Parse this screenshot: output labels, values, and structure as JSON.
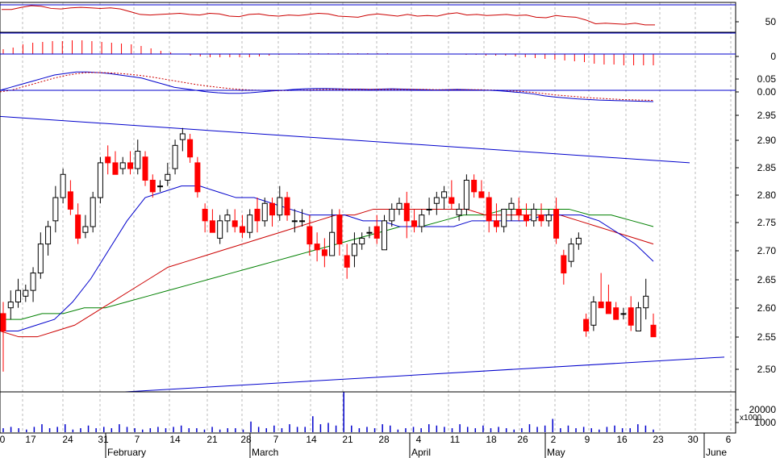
{
  "chart_data": {
    "type": "candlestick",
    "colors": {
      "up": "#ffffff",
      "down": "#ff0000",
      "ma_short": "#0000cc",
      "ma_mid": "#cc0000",
      "ma_long": "#008000",
      "trend": "#0000cc",
      "grid": "#bbbbbb",
      "frame": "#000000",
      "rsi": "#cc0000",
      "macd": "#0000cc",
      "macd_signal": "#cc0000",
      "hist": "#ff0000",
      "volume": "#0000cc"
    },
    "panels": {
      "rsi": {
        "tick_labels": [
          "50"
        ],
        "values": [
          70,
          70,
          74,
          77,
          76,
          72,
          71,
          73,
          74,
          73,
          72,
          73,
          71,
          66,
          61,
          60,
          61,
          62,
          63,
          61,
          60,
          63,
          62,
          58,
          57,
          61,
          62,
          59,
          58,
          60,
          59,
          61,
          63,
          62,
          58,
          57,
          56,
          60,
          62,
          60,
          58,
          61,
          58,
          59,
          58,
          62,
          64,
          60,
          61,
          59,
          60,
          61,
          59,
          60,
          56,
          55,
          59,
          57,
          56,
          51,
          44,
          45,
          44,
          43,
          45,
          42,
          42
        ]
      },
      "histogram": {
        "tick_labels": [
          "0"
        ],
        "values": [
          0.006,
          0.008,
          0.012,
          0.014,
          0.015,
          0.016,
          0.016,
          0.017,
          0.017,
          0.016,
          0.015,
          0.014,
          0.013,
          0.012,
          0.01,
          0.007,
          0.004,
          0.002,
          0.0,
          -0.002,
          -0.003,
          -0.004,
          -0.004,
          -0.004,
          -0.004,
          -0.004,
          -0.003,
          -0.002,
          -0.001,
          0.0,
          0.001,
          0.001,
          0.001,
          0.001,
          0.001,
          0.001,
          0.001,
          0.001,
          0.001,
          0.001,
          0.0,
          0.0,
          0.0,
          0.0,
          0.0,
          0.0,
          0.0,
          -0.001,
          -0.001,
          -0.002,
          -0.002,
          -0.002,
          -0.003,
          -0.004,
          -0.005,
          -0.006,
          -0.007,
          -0.008,
          -0.009,
          -0.01,
          -0.012,
          -0.013,
          -0.013,
          -0.014,
          -0.014,
          -0.014,
          -0.014
        ]
      },
      "macd": {
        "tick_labels": [
          "0.05",
          "0.00"
        ],
        "macd": [
          0,
          0.01,
          0.02,
          0.03,
          0.04,
          0.05,
          0.055,
          0.06,
          0.06,
          0.058,
          0.055,
          0.05,
          0.045,
          0.04,
          0.03,
          0.02,
          0.01,
          0.005,
          0.0,
          -0.005,
          -0.008,
          -0.01,
          -0.01,
          -0.008,
          -0.005,
          -0.002,
          0.0,
          0.003,
          0.005,
          0.006,
          0.006,
          0.005,
          0.004,
          0.004,
          0.003,
          0.004,
          0.005,
          0.004,
          0.003,
          0.002,
          0.001,
          0.002,
          0.003,
          0.002,
          0.001,
          0.0,
          -0.002,
          -0.005,
          -0.008,
          -0.012,
          -0.018,
          -0.022,
          -0.025,
          -0.028,
          -0.03,
          -0.032,
          -0.033,
          -0.034,
          -0.035,
          -0.036,
          -0.037
        ],
        "signal": [
          -0.005,
          0.0,
          0.01,
          0.02,
          0.03,
          0.04,
          0.048,
          0.054,
          0.058,
          0.058,
          0.057,
          0.055,
          0.052,
          0.048,
          0.043,
          0.037,
          0.031,
          0.025,
          0.019,
          0.014,
          0.01,
          0.006,
          0.003,
          0.001,
          0.0,
          -0.001,
          -0.001,
          0.0,
          0.001,
          0.002,
          0.003,
          0.003,
          0.003,
          0.003,
          0.003,
          0.003,
          0.003,
          0.003,
          0.003,
          0.003,
          0.002,
          0.002,
          0.002,
          0.002,
          0.002,
          0.001,
          0.0,
          -0.002,
          -0.004,
          -0.007,
          -0.011,
          -0.015,
          -0.018,
          -0.021,
          -0.024,
          -0.026,
          -0.028,
          -0.03,
          -0.031,
          -0.032,
          -0.033
        ]
      },
      "price": {
        "tick_labels": [
          "2.95",
          "2.90",
          "2.85",
          "2.80",
          "2.75",
          "2.70",
          "2.65",
          "2.60",
          "2.55",
          "2.50"
        ],
        "ylim": [
          2.465,
          2.985
        ],
        "candles": [
          [
            2.6,
            2.62,
            2.5,
            2.57
          ],
          [
            2.61,
            2.64,
            2.59,
            2.62
          ],
          [
            2.62,
            2.66,
            2.61,
            2.64
          ],
          [
            2.63,
            2.65,
            2.62,
            2.64
          ],
          [
            2.64,
            2.68,
            2.62,
            2.67
          ],
          [
            2.67,
            2.74,
            2.66,
            2.72
          ],
          [
            2.72,
            2.76,
            2.7,
            2.75
          ],
          [
            2.76,
            2.82,
            2.74,
            2.8
          ],
          [
            2.8,
            2.85,
            2.79,
            2.84
          ],
          [
            2.81,
            2.83,
            2.77,
            2.78
          ],
          [
            2.77,
            2.79,
            2.72,
            2.73
          ],
          [
            2.74,
            2.77,
            2.73,
            2.75
          ],
          [
            2.75,
            2.81,
            2.74,
            2.8
          ],
          [
            2.8,
            2.87,
            2.79,
            2.86
          ],
          [
            2.87,
            2.89,
            2.84,
            2.86
          ],
          [
            2.86,
            2.88,
            2.84,
            2.84
          ],
          [
            2.85,
            2.87,
            2.84,
            2.86
          ],
          [
            2.86,
            2.88,
            2.84,
            2.85
          ],
          [
            2.85,
            2.9,
            2.84,
            2.88
          ],
          [
            2.87,
            2.88,
            2.82,
            2.83
          ],
          [
            2.83,
            2.84,
            2.8,
            2.81
          ],
          [
            2.82,
            2.83,
            2.81,
            2.82
          ],
          [
            2.83,
            2.86,
            2.82,
            2.84
          ],
          [
            2.85,
            2.9,
            2.84,
            2.89
          ],
          [
            2.9,
            2.92,
            2.88,
            2.91
          ],
          [
            2.9,
            2.91,
            2.86,
            2.87
          ],
          [
            2.86,
            2.87,
            2.8,
            2.81
          ],
          [
            2.78,
            2.79,
            2.74,
            2.76
          ],
          [
            2.76,
            2.78,
            2.74,
            2.74
          ],
          [
            2.73,
            2.77,
            2.72,
            2.76
          ],
          [
            2.76,
            2.78,
            2.74,
            2.77
          ],
          [
            2.76,
            2.78,
            2.74,
            2.75
          ],
          [
            2.75,
            2.77,
            2.73,
            2.74
          ],
          [
            2.74,
            2.78,
            2.73,
            2.77
          ],
          [
            2.78,
            2.8,
            2.74,
            2.76
          ],
          [
            2.76,
            2.8,
            2.75,
            2.79
          ],
          [
            2.79,
            2.8,
            2.75,
            2.77
          ],
          [
            2.77,
            2.82,
            2.76,
            2.8
          ],
          [
            2.8,
            2.81,
            2.76,
            2.77
          ],
          [
            2.76,
            2.78,
            2.74,
            2.76
          ],
          [
            2.76,
            2.78,
            2.75,
            2.76
          ],
          [
            2.75,
            2.77,
            2.7,
            2.72
          ],
          [
            2.72,
            2.74,
            2.69,
            2.71
          ],
          [
            2.71,
            2.73,
            2.68,
            2.7
          ],
          [
            2.7,
            2.78,
            2.7,
            2.74
          ],
          [
            2.77,
            2.78,
            2.7,
            2.72
          ],
          [
            2.7,
            2.72,
            2.66,
            2.68
          ],
          [
            2.7,
            2.74,
            2.68,
            2.72
          ],
          [
            2.72,
            2.74,
            2.71,
            2.73
          ],
          [
            2.74,
            2.75,
            2.73,
            2.74
          ],
          [
            2.75,
            2.77,
            2.72,
            2.73
          ],
          [
            2.71,
            2.77,
            2.71,
            2.76
          ],
          [
            2.76,
            2.79,
            2.75,
            2.78
          ],
          [
            2.78,
            2.8,
            2.77,
            2.79
          ],
          [
            2.79,
            2.81,
            2.73,
            2.76
          ],
          [
            2.76,
            2.78,
            2.74,
            2.75
          ],
          [
            2.75,
            2.78,
            2.74,
            2.77
          ],
          [
            2.78,
            2.8,
            2.77,
            2.78
          ],
          [
            2.79,
            2.81,
            2.77,
            2.8
          ],
          [
            2.8,
            2.82,
            2.78,
            2.81
          ],
          [
            2.8,
            2.83,
            2.78,
            2.79
          ],
          [
            2.77,
            2.79,
            2.76,
            2.78
          ],
          [
            2.78,
            2.84,
            2.77,
            2.83
          ],
          [
            2.83,
            2.84,
            2.8,
            2.81
          ],
          [
            2.81,
            2.83,
            2.8,
            2.8
          ],
          [
            2.8,
            2.81,
            2.74,
            2.76
          ],
          [
            2.76,
            2.79,
            2.74,
            2.75
          ],
          [
            2.75,
            2.78,
            2.74,
            2.78
          ],
          [
            2.78,
            2.8,
            2.76,
            2.79
          ],
          [
            2.78,
            2.8,
            2.76,
            2.77
          ],
          [
            2.77,
            2.79,
            2.75,
            2.76
          ],
          [
            2.76,
            2.79,
            2.75,
            2.78
          ],
          [
            2.77,
            2.79,
            2.75,
            2.76
          ],
          [
            2.76,
            2.78,
            2.75,
            2.77
          ],
          [
            2.78,
            2.8,
            2.72,
            2.73
          ],
          [
            2.7,
            2.71,
            2.65,
            2.67
          ],
          [
            2.69,
            2.73,
            2.68,
            2.72
          ],
          [
            2.72,
            2.74,
            2.71,
            2.73
          ],
          [
            2.59,
            2.6,
            2.56,
            2.57
          ],
          [
            2.58,
            2.63,
            2.57,
            2.62
          ],
          [
            2.62,
            2.67,
            2.61,
            2.61
          ],
          [
            2.62,
            2.65,
            2.6,
            2.6
          ],
          [
            2.61,
            2.62,
            2.59,
            2.59
          ],
          [
            2.6,
            2.61,
            2.59,
            2.6
          ],
          [
            2.61,
            2.63,
            2.57,
            2.58
          ],
          [
            2.57,
            2.62,
            2.57,
            2.61
          ],
          [
            2.61,
            2.66,
            2.59,
            2.63
          ],
          [
            2.58,
            2.6,
            2.56,
            2.56
          ]
        ],
        "ma_short": [
          2.57,
          2.57,
          2.58,
          2.59,
          2.62,
          2.66,
          2.71,
          2.76,
          2.8,
          2.81,
          2.82,
          2.82,
          2.81,
          2.8,
          2.8,
          2.79,
          2.78,
          2.77,
          2.77,
          2.77,
          2.76,
          2.76,
          2.75,
          2.75,
          2.75,
          2.75,
          2.76,
          2.76,
          2.76,
          2.76,
          2.77,
          2.77,
          2.77,
          2.76,
          2.74,
          2.72,
          2.69
        ],
        "ma_mid": [
          2.57,
          2.56,
          2.56,
          2.57,
          2.58,
          2.6,
          2.62,
          2.64,
          2.66,
          2.68,
          2.69,
          2.7,
          2.71,
          2.72,
          2.73,
          2.74,
          2.75,
          2.76,
          2.77,
          2.77,
          2.78,
          2.78,
          2.78,
          2.78,
          2.78,
          2.78,
          2.77,
          2.77,
          2.77,
          2.77,
          2.77,
          2.76,
          2.75,
          2.74,
          2.73,
          2.72
        ],
        "ma_long": [
          2.59,
          2.59,
          2.6,
          2.6,
          2.61,
          2.61,
          2.62,
          2.63,
          2.64,
          2.65,
          2.66,
          2.67,
          2.68,
          2.69,
          2.7,
          2.71,
          2.72,
          2.73,
          2.74,
          2.75,
          2.75,
          2.76,
          2.77,
          2.77,
          2.78,
          2.78,
          2.78,
          2.78,
          2.77,
          2.77,
          2.76,
          2.75
        ],
        "trend_upper": [
          2.94,
          2.86
        ],
        "trend_lower": [
          2.465,
          2.525
        ]
      },
      "volume": {
        "tick_labels": [
          "20000",
          "1000",
          "x1000"
        ],
        "values": [
          3,
          4,
          3,
          2,
          4,
          6,
          3,
          4,
          6,
          2,
          3,
          5,
          3,
          4,
          3,
          6,
          4,
          3,
          2,
          3,
          4,
          3,
          4,
          5,
          3,
          3,
          2,
          4,
          2,
          3,
          3,
          2,
          8,
          4,
          3,
          5,
          3,
          6,
          4,
          4,
          12,
          6,
          7,
          5,
          30,
          5,
          3,
          4,
          3,
          6,
          5,
          2,
          3,
          4,
          3,
          6,
          5,
          4,
          3,
          6,
          4,
          3,
          5,
          3,
          4,
          3,
          2,
          3,
          6,
          4,
          5,
          10,
          3,
          5,
          3,
          4,
          3,
          2,
          4,
          5,
          3,
          3,
          6,
          5,
          2
        ]
      }
    },
    "x_tick_labels": [
      "0",
      "17",
      "24",
      "31",
      "7",
      "14",
      "21",
      "28",
      "7",
      "14",
      "21",
      "28",
      "4",
      "11",
      "18",
      "26",
      "2",
      "9",
      "16",
      "23",
      "30",
      "6"
    ],
    "months": [
      "February",
      "March",
      "April",
      "May",
      "June"
    ]
  }
}
